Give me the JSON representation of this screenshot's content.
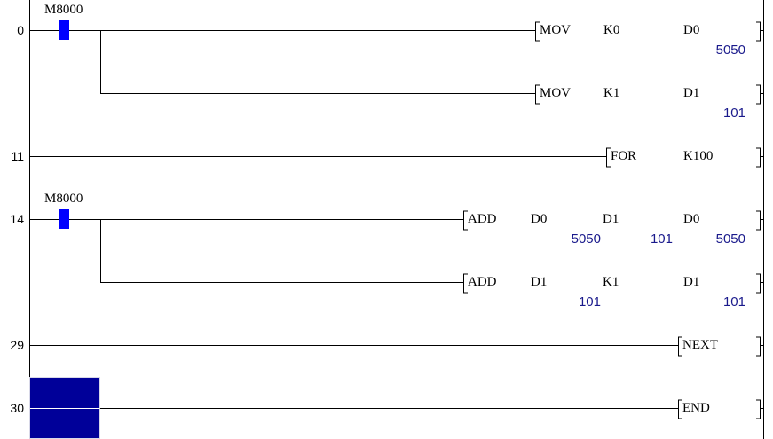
{
  "colors": {
    "contact": "#0000ff",
    "cursor": "#000099",
    "monitor_value": "#1a1a8c"
  },
  "rungs": [
    {
      "step": "0",
      "contact": "M8000",
      "instructions": [
        {
          "op": "MOV",
          "args": [
            "K0",
            "D0"
          ],
          "values": [
            "",
            "5050"
          ]
        },
        {
          "op": "MOV",
          "args": [
            "K1",
            "D1"
          ],
          "values": [
            "",
            "101"
          ]
        }
      ]
    },
    {
      "step": "11",
      "instructions": [
        {
          "op": "FOR",
          "args": [
            "K100"
          ]
        }
      ]
    },
    {
      "step": "14",
      "contact": "M8000",
      "instructions": [
        {
          "op": "ADD",
          "args": [
            "D0",
            "D1",
            "D0"
          ],
          "values": [
            "5050",
            "101",
            "5050"
          ]
        },
        {
          "op": "ADD",
          "args": [
            "D1",
            "K1",
            "D1"
          ],
          "values": [
            "101",
            "",
            "101"
          ]
        }
      ]
    },
    {
      "step": "29",
      "instructions": [
        {
          "op": "NEXT"
        }
      ]
    },
    {
      "step": "30",
      "instructions": [
        {
          "op": "END"
        }
      ]
    }
  ]
}
